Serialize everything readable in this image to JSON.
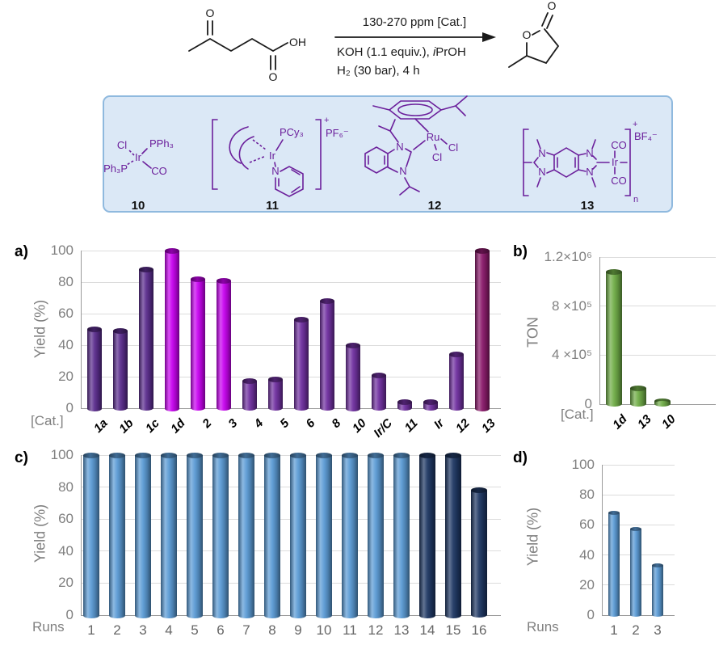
{
  "scheme": {
    "conditions_above": "130-270 ppm [Cat.]",
    "conditions_line1_pre": "KOH (1.1 equiv.), ",
    "conditions_line1_italic": "i",
    "conditions_line1_post": "PrOH",
    "conditions_line2": "H₂ (30 bar), 4 h"
  },
  "molecules": {
    "levulinic_acid": {
      "ketone_o": "O",
      "acid_oh": "OH",
      "acid_o": "O"
    },
    "gvl": {
      "carbonyl_o": "O",
      "ring_o": "O"
    },
    "cat10": {
      "cl": "Cl",
      "pph3": "PPh₃",
      "ph3p": "Ph₃P",
      "co": "CO",
      "ir": "Ir",
      "number": "10"
    },
    "cat11": {
      "charge": "+",
      "counterion": "PF₆⁻",
      "pcy3": "PCy₃",
      "ir": "Ir",
      "n": "N",
      "number": "11"
    },
    "cat12": {
      "ru": "Ru",
      "cl_right": "Cl",
      "cl_down": "Cl",
      "n_top": "N",
      "n_bottom": "N",
      "number": "12"
    },
    "cat13": {
      "n_tl": "N",
      "n_bl": "N",
      "n_tr": "N",
      "n_br": "N",
      "ir": "Ir",
      "co_top": "CO",
      "co_bottom": "CO",
      "charge": "+",
      "counterion": "BF₄⁻",
      "repeat_sub": "n",
      "number": "13"
    }
  },
  "chart_data": [
    {
      "panel": "a)",
      "type": "bar",
      "categories": [
        "1a",
        "1b",
        "1c",
        "1d",
        "2",
        "3",
        "4",
        "5",
        "6",
        "8",
        "10",
        "Ir/C",
        "11",
        "Ir",
        "12",
        "13"
      ],
      "values": [
        50,
        49,
        88,
        100,
        82,
        81,
        17,
        18,
        56,
        68,
        40,
        21,
        4,
        4,
        34,
        100
      ],
      "bar_colors": [
        "#5B2D8E",
        "#5B2D8E",
        "#5B2D8E",
        "#C803F0",
        "#C803F0",
        "#C803F0",
        "#7030A0",
        "#7030A0",
        "#7030A0",
        "#7030A0",
        "#7030A0",
        "#7030A0",
        "#7030A0",
        "#7030A0",
        "#7030A0",
        "#8B1A6B"
      ],
      "xlabel": "[Cat.]",
      "ylabel": "Yield (%)",
      "ylim": [
        0,
        100
      ],
      "ytick_labels": [
        "0",
        "20",
        "40",
        "60",
        "80",
        "100"
      ],
      "grid": true,
      "category_style": "bold-italic-rotated"
    },
    {
      "panel": "b)",
      "type": "bar",
      "categories": [
        "1d",
        "13",
        "10"
      ],
      "values": [
        1080000,
        130000,
        20000
      ],
      "bar_colors": [
        "#70AD47",
        "#70AD47",
        "#70AD47"
      ],
      "xlabel": "[Cat.]",
      "ylabel": "TON",
      "ylim": [
        0,
        1200000
      ],
      "ytick_labels": [
        "0",
        "4 ×10⁵",
        "8 ×10⁵",
        "1.2×10⁶"
      ],
      "grid": true,
      "category_style": "bold-italic-rotated"
    },
    {
      "panel": "c)",
      "type": "bar",
      "categories": [
        "1",
        "2",
        "3",
        "4",
        "5",
        "6",
        "7",
        "8",
        "9",
        "10",
        "11",
        "12",
        "13",
        "14",
        "15",
        "16"
      ],
      "values": [
        100,
        100,
        100,
        100,
        100,
        100,
        100,
        100,
        100,
        100,
        100,
        100,
        100,
        100,
        100,
        78
      ],
      "bar_colors": [
        "#5B9BD5",
        "#5B9BD5",
        "#5B9BD5",
        "#5B9BD5",
        "#5B9BD5",
        "#5B9BD5",
        "#5B9BD5",
        "#5B9BD5",
        "#5B9BD5",
        "#5B9BD5",
        "#5B9BD5",
        "#5B9BD5",
        "#5B9BD5",
        "#1F3864",
        "#1F3864",
        "#1F3864"
      ],
      "xlabel": "Runs",
      "ylabel": "Yield (%)",
      "ylim": [
        0,
        100
      ],
      "ytick_labels": [
        "0",
        "20",
        "40",
        "60",
        "80",
        "100"
      ],
      "grid": true,
      "category_style": "plain"
    },
    {
      "panel": "d)",
      "type": "bar",
      "categories": [
        "1",
        "2",
        "3"
      ],
      "values": [
        68,
        57,
        33
      ],
      "bar_colors": [
        "#5B9BD5",
        "#5B9BD5",
        "#5B9BD5"
      ],
      "xlabel": "Runs",
      "ylabel": "Yield (%)",
      "ylim": [
        0,
        100
      ],
      "ytick_labels": [
        "0",
        "20",
        "40",
        "60",
        "80",
        "100"
      ],
      "grid": true,
      "category_style": "plain"
    }
  ]
}
